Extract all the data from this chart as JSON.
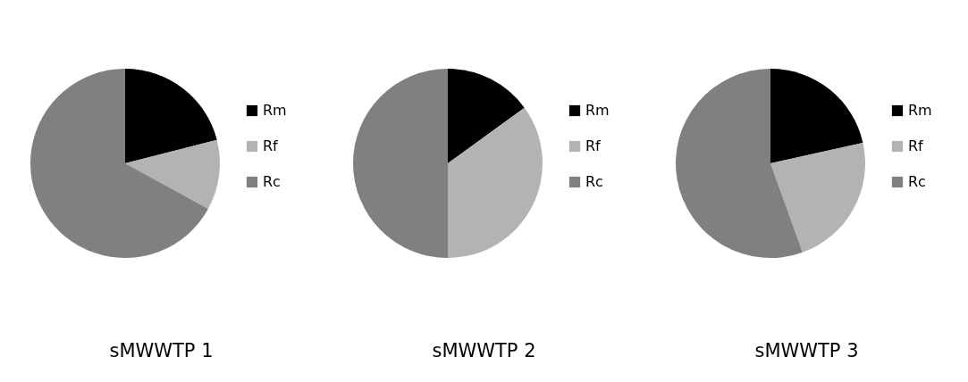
{
  "chart_data": [
    {
      "type": "pie",
      "title": "sMWWTP 1",
      "categories": [
        "Rm",
        "Rf",
        "Rc"
      ],
      "values": [
        21,
        12,
        67
      ],
      "colors": [
        "#000000",
        "#b3b3b3",
        "#808080"
      ],
      "legend": "right"
    },
    {
      "type": "pie",
      "title": "sMWWTP 2",
      "categories": [
        "Rm",
        "Rf",
        "Rc"
      ],
      "values": [
        15,
        35,
        50
      ],
      "colors": [
        "#000000",
        "#b3b3b3",
        "#808080"
      ],
      "legend": "right"
    },
    {
      "type": "pie",
      "title": "sMWWTP 3",
      "categories": [
        "Rm",
        "Rf",
        "Rc"
      ],
      "values": [
        21.5,
        23,
        55.5
      ],
      "colors": [
        "#000000",
        "#b3b3b3",
        "#808080"
      ],
      "legend": "right"
    }
  ]
}
